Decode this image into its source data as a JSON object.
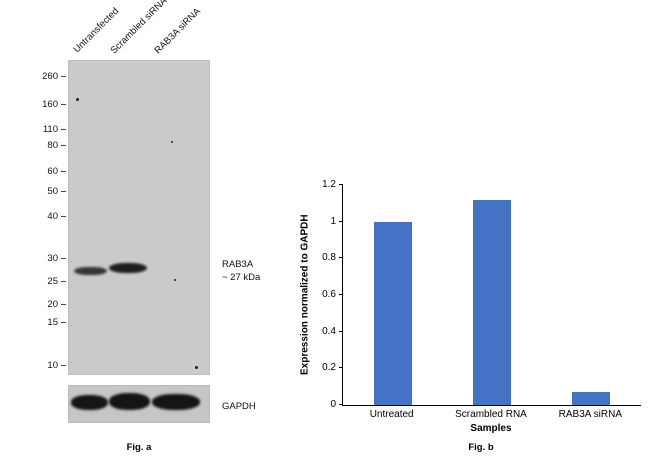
{
  "figure": {
    "fig_a_caption": "Fig. a",
    "fig_b_caption": "Fig. b"
  },
  "blot": {
    "lane_labels": [
      "Untransfected",
      "Scrambled siRNA",
      "RAB3A siRNA"
    ],
    "mw_markers": [
      "260",
      "160",
      "110",
      "80",
      "60",
      "50",
      "40",
      "30",
      "25",
      "20",
      "15",
      "10"
    ],
    "target_label_line1": "RAB3A",
    "target_label_line2": "~ 27 kDa",
    "loading_control_label": "GAPDH"
  },
  "chart_data": {
    "type": "bar",
    "title": "",
    "categories": [
      "Untreated",
      "Scrambled RNA",
      "RAB3A siRNA"
    ],
    "values": [
      1.0,
      1.12,
      0.07
    ],
    "xlabel": "Samples",
    "ylabel": "Expression normalized to GAPDH",
    "ylim": [
      0,
      1.2
    ],
    "yticks": [
      0,
      0.2,
      0.4,
      0.6,
      0.8,
      1,
      1.2
    ],
    "bar_color": "#4472C4",
    "grid": false,
    "legend": false
  }
}
